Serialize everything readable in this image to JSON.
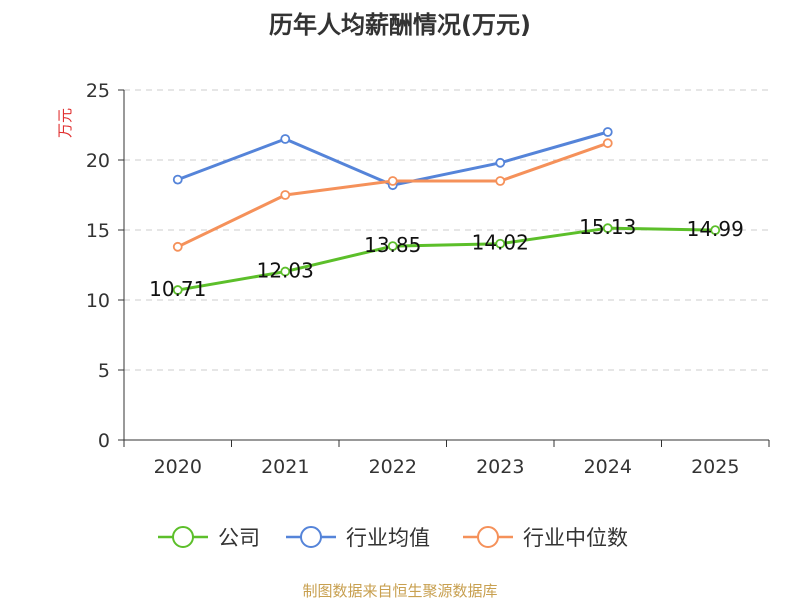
{
  "chart_data": {
    "type": "line",
    "title": "历年人均薪酬情况(万元)",
    "ylabel": "万元",
    "xlabel": "",
    "categories": [
      "2020",
      "2021",
      "2022",
      "2023",
      "2024",
      "2025"
    ],
    "ylim": [
      0,
      25
    ],
    "yticks": [
      "0",
      "5",
      "10",
      "15",
      "20",
      "25"
    ],
    "grid": true,
    "legend_position": "bottom",
    "series": [
      {
        "name": "公司",
        "color": "#5cbf2a",
        "values": [
          10.71,
          12.03,
          13.85,
          14.02,
          15.13,
          14.99
        ],
        "labels": [
          "10.71",
          "12.03",
          "13.85",
          "14.02",
          "15.13",
          "14.99"
        ]
      },
      {
        "name": "行业均值",
        "color": "#5584d9",
        "values": [
          18.6,
          21.5,
          18.2,
          19.8,
          22.0,
          null
        ]
      },
      {
        "name": "行业中位数",
        "color": "#f5915a",
        "values": [
          13.8,
          17.5,
          18.5,
          18.5,
          21.2,
          null
        ]
      }
    ]
  },
  "source_note": "制图数据来自恒生聚源数据库"
}
